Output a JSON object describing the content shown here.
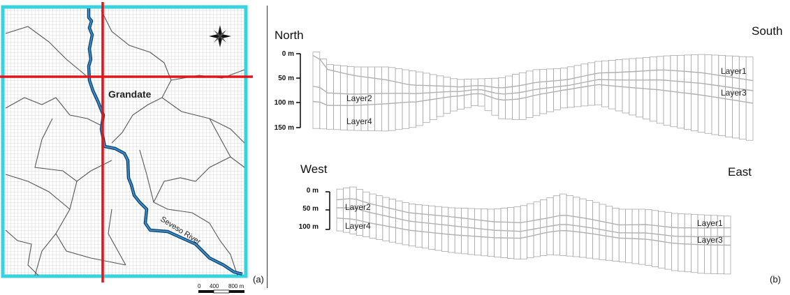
{
  "panel_a": {
    "town_label": "Grandate",
    "river_label": "Seveso River",
    "scale": {
      "ticks": [
        "0",
        "400",
        "800 m"
      ]
    },
    "panel_label": "(a)",
    "colors": {
      "border": "#37d3df",
      "section_line": "#e0161b",
      "river": "#1e6fa8",
      "grid": "#bdbdbd"
    },
    "icons": {
      "compass": "compass-rose-icon"
    }
  },
  "panel_b": {
    "panel_label": "(b)",
    "ns_section": {
      "left_label": "North",
      "right_label": "South",
      "depth_ticks": [
        "0 m",
        "50 m",
        "100 m",
        "150 m"
      ],
      "layer_labels": [
        "Layer2",
        "Layer4",
        "Layer1",
        "Layer3"
      ]
    },
    "we_section": {
      "left_label": "West",
      "right_label": "East",
      "depth_ticks": [
        "0 m",
        "50 m",
        "100 m"
      ],
      "layer_labels": [
        "Layer2",
        "Layer4",
        "Layer1",
        "Layer3"
      ]
    }
  }
}
